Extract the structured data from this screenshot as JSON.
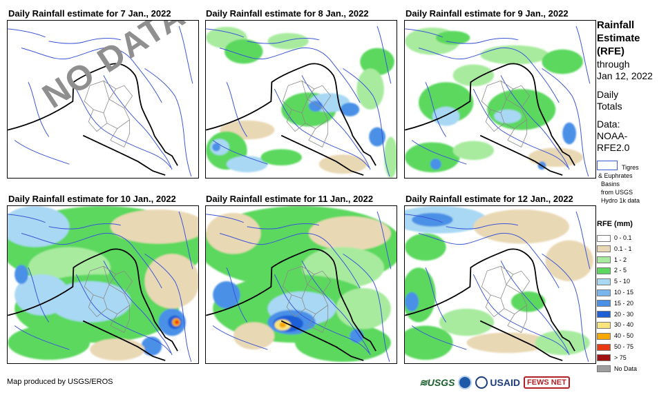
{
  "panels": [
    {
      "id": "p1",
      "title": "Daily Rainfall estimate for 7 Jan., 2022",
      "overlay": "NO DATA",
      "rain": []
    },
    {
      "id": "p2",
      "title": "Daily Rainfall estimate for 8 Jan., 2022",
      "rain": [
        {
          "c": "#a8eb9f",
          "cx": 30,
          "cy": 25,
          "rx": 30,
          "ry": 16
        },
        {
          "c": "#5cd85e",
          "cx": 55,
          "cy": 45,
          "rx": 28,
          "ry": 18
        },
        {
          "c": "#a8eb9f",
          "cx": 120,
          "cy": 30,
          "rx": 30,
          "ry": 12
        },
        {
          "c": "#5cd85e",
          "cx": 250,
          "cy": 60,
          "rx": 25,
          "ry": 20
        },
        {
          "c": "#a8eb9f",
          "cx": 240,
          "cy": 100,
          "rx": 20,
          "ry": 30
        },
        {
          "c": "#5cd85e",
          "cx": 150,
          "cy": 130,
          "rx": 40,
          "ry": 25
        },
        {
          "c": "#a8d8f3",
          "cx": 180,
          "cy": 120,
          "rx": 30,
          "ry": 14
        },
        {
          "c": "#4a90e6",
          "cx": 210,
          "cy": 130,
          "rx": 14,
          "ry": 10
        },
        {
          "c": "#4a90e6",
          "cx": 160,
          "cy": 125,
          "rx": 10,
          "ry": 8
        },
        {
          "c": "#e9d8b4",
          "cx": 60,
          "cy": 160,
          "rx": 40,
          "ry": 14
        },
        {
          "c": "#5cd85e",
          "cx": 30,
          "cy": 190,
          "rx": 30,
          "ry": 28
        },
        {
          "c": "#a8d8f3",
          "cx": 20,
          "cy": 185,
          "rx": 14,
          "ry": 12
        },
        {
          "c": "#4a90e6",
          "cx": 15,
          "cy": 185,
          "rx": 6,
          "ry": 6
        },
        {
          "c": "#a8d8f3",
          "cx": 60,
          "cy": 210,
          "rx": 30,
          "ry": 12
        },
        {
          "c": "#4a90e6",
          "cx": 250,
          "cy": 170,
          "rx": 12,
          "ry": 14
        },
        {
          "c": "#5cd85e",
          "cx": 110,
          "cy": 200,
          "rx": 30,
          "ry": 12
        },
        {
          "c": "#e9d8b4",
          "cx": 200,
          "cy": 210,
          "rx": 35,
          "ry": 14
        },
        {
          "c": "#a8eb9f",
          "cx": 270,
          "cy": 200,
          "rx": 10,
          "ry": 30
        }
      ]
    },
    {
      "id": "p3",
      "title": "Daily Rainfall estimate for 9 Jan., 2022",
      "rain": [
        {
          "c": "#a8eb9f",
          "cx": 40,
          "cy": 30,
          "rx": 40,
          "ry": 20
        },
        {
          "c": "#5cd85e",
          "cx": 70,
          "cy": 25,
          "rx": 25,
          "ry": 10
        },
        {
          "c": "#a8eb9f",
          "cx": 160,
          "cy": 50,
          "rx": 50,
          "ry": 14
        },
        {
          "c": "#5cd85e",
          "cx": 230,
          "cy": 60,
          "rx": 30,
          "ry": 18
        },
        {
          "c": "#a8eb9f",
          "cx": 100,
          "cy": 80,
          "rx": 30,
          "ry": 16
        },
        {
          "c": "#5cd85e",
          "cx": 60,
          "cy": 120,
          "rx": 40,
          "ry": 30
        },
        {
          "c": "#a8d8f3",
          "cx": 60,
          "cy": 140,
          "rx": 20,
          "ry": 14
        },
        {
          "c": "#5cd85e",
          "cx": 170,
          "cy": 130,
          "rx": 50,
          "ry": 30
        },
        {
          "c": "#a8d8f3",
          "cx": 150,
          "cy": 140,
          "rx": 20,
          "ry": 10
        },
        {
          "c": "#4a90e6",
          "cx": 240,
          "cy": 165,
          "rx": 10,
          "ry": 16
        },
        {
          "c": "#e9d8b4",
          "cx": 220,
          "cy": 200,
          "rx": 40,
          "ry": 14
        },
        {
          "c": "#5cd85e",
          "cx": 40,
          "cy": 200,
          "rx": 40,
          "ry": 22
        },
        {
          "c": "#4a90e6",
          "cx": 45,
          "cy": 210,
          "rx": 8,
          "ry": 8
        },
        {
          "c": "#a8eb9f",
          "cx": 100,
          "cy": 190,
          "rx": 30,
          "ry": 14
        },
        {
          "c": "#4a90e6",
          "cx": 200,
          "cy": 212,
          "rx": 6,
          "ry": 6
        }
      ]
    },
    {
      "id": "p4",
      "title": "Daily Rainfall estimate for 10 Jan., 2022",
      "rain": [
        {
          "c": "#5cd85e",
          "cx": 139,
          "cy": 60,
          "rx": 150,
          "ry": 60
        },
        {
          "c": "#a8d8f3",
          "cx": 40,
          "cy": 30,
          "rx": 50,
          "ry": 30
        },
        {
          "c": "#e9d8b4",
          "cx": 220,
          "cy": 30,
          "rx": 70,
          "ry": 25
        },
        {
          "c": "#a8eb9f",
          "cx": 90,
          "cy": 90,
          "rx": 60,
          "ry": 30
        },
        {
          "c": "#5cd85e",
          "cx": 130,
          "cy": 150,
          "rx": 120,
          "ry": 50
        },
        {
          "c": "#a8d8f3",
          "cx": 120,
          "cy": 140,
          "rx": 60,
          "ry": 30
        },
        {
          "c": "#a8d8f3",
          "cx": 50,
          "cy": 130,
          "rx": 40,
          "ry": 30
        },
        {
          "c": "#e9d8b4",
          "cx": 240,
          "cy": 110,
          "rx": 40,
          "ry": 40
        },
        {
          "c": "#4a90e6",
          "cx": 240,
          "cy": 170,
          "rx": 20,
          "ry": 20
        },
        {
          "c": "#1f5fd6",
          "cx": 244,
          "cy": 170,
          "rx": 10,
          "ry": 10
        },
        {
          "c": "#f6a700",
          "cx": 246,
          "cy": 170,
          "rx": 6,
          "ry": 6
        },
        {
          "c": "#e83b14",
          "cx": 247,
          "cy": 170,
          "rx": 3,
          "ry": 3
        },
        {
          "c": "#4a90e6",
          "cx": 210,
          "cy": 205,
          "rx": 15,
          "ry": 14
        },
        {
          "c": "#5cd85e",
          "cx": 60,
          "cy": 200,
          "rx": 60,
          "ry": 25
        },
        {
          "c": "#e9d8b4",
          "cx": 160,
          "cy": 210,
          "rx": 40,
          "ry": 16
        },
        {
          "c": "#4a90e6",
          "cx": 20,
          "cy": 100,
          "rx": 10,
          "ry": 14
        }
      ]
    },
    {
      "id": "p5",
      "title": "Daily Rainfall estimate for 11 Jan., 2022",
      "rain": [
        {
          "c": "#5cd85e",
          "cx": 139,
          "cy": 60,
          "rx": 150,
          "ry": 60
        },
        {
          "c": "#e9d8b4",
          "cx": 40,
          "cy": 40,
          "rx": 40,
          "ry": 30
        },
        {
          "c": "#e9d8b4",
          "cx": 210,
          "cy": 40,
          "rx": 60,
          "ry": 25
        },
        {
          "c": "#a8eb9f",
          "cx": 200,
          "cy": 90,
          "rx": 60,
          "ry": 30
        },
        {
          "c": "#5cd85e",
          "cx": 130,
          "cy": 150,
          "rx": 120,
          "ry": 50
        },
        {
          "c": "#4a90e6",
          "cx": 30,
          "cy": 130,
          "rx": 20,
          "ry": 20
        },
        {
          "c": "#a8d8f3",
          "cx": 140,
          "cy": 150,
          "rx": 50,
          "ry": 25
        },
        {
          "c": "#4a90e6",
          "cx": 125,
          "cy": 170,
          "rx": 35,
          "ry": 18
        },
        {
          "c": "#1f5fd6",
          "cx": 120,
          "cy": 172,
          "rx": 22,
          "ry": 12
        },
        {
          "c": "#f9e57e",
          "cx": 112,
          "cy": 174,
          "rx": 12,
          "ry": 8
        },
        {
          "c": "#f6a700",
          "cx": 112,
          "cy": 174,
          "rx": 5,
          "ry": 4
        },
        {
          "c": "#e9d8b4",
          "cx": 70,
          "cy": 190,
          "rx": 30,
          "ry": 20
        },
        {
          "c": "#5cd85e",
          "cx": 200,
          "cy": 200,
          "rx": 70,
          "ry": 28
        },
        {
          "c": "#4a90e6",
          "cx": 220,
          "cy": 190,
          "rx": 10,
          "ry": 10
        },
        {
          "c": "#a8eb9f",
          "cx": 230,
          "cy": 150,
          "rx": 40,
          "ry": 30
        }
      ]
    },
    {
      "id": "p6",
      "title": "Daily Rainfall estimate for 12 Jan., 2022",
      "rain": [
        {
          "c": "#a8d8f3",
          "cx": 50,
          "cy": 20,
          "rx": 70,
          "ry": 20
        },
        {
          "c": "#4a90e6",
          "cx": 40,
          "cy": 20,
          "rx": 30,
          "ry": 10
        },
        {
          "c": "#e9d8b4",
          "cx": 170,
          "cy": 30,
          "rx": 70,
          "ry": 25
        },
        {
          "c": "#5cd85e",
          "cx": 30,
          "cy": 60,
          "rx": 30,
          "ry": 20
        },
        {
          "c": "#e9d8b4",
          "cx": 240,
          "cy": 80,
          "rx": 35,
          "ry": 30
        },
        {
          "c": "#5cd85e",
          "cx": 20,
          "cy": 130,
          "rx": 25,
          "ry": 40
        },
        {
          "c": "#4a90e6",
          "cx": 10,
          "cy": 140,
          "rx": 10,
          "ry": 14
        },
        {
          "c": "#a8eb9f",
          "cx": 90,
          "cy": 170,
          "rx": 40,
          "ry": 20
        },
        {
          "c": "#5cd85e",
          "cx": 30,
          "cy": 200,
          "rx": 40,
          "ry": 25
        },
        {
          "c": "#e9d8b4",
          "cx": 150,
          "cy": 200,
          "rx": 60,
          "ry": 15
        },
        {
          "c": "#a8eb9f",
          "cx": 230,
          "cy": 200,
          "rx": 40,
          "ry": 18
        },
        {
          "c": "#5cd85e",
          "cx": 180,
          "cy": 140,
          "rx": 25,
          "ry": 15
        }
      ]
    }
  ],
  "sidebar": {
    "heading": [
      "Rainfall",
      "Estimate",
      "(RFE)"
    ],
    "through": [
      "through",
      "Jan 12, 2022"
    ],
    "daily": [
      "Daily",
      "Totals"
    ],
    "data_src": [
      "Data:",
      "NOAA-",
      "RFE2.0"
    ],
    "basin_note": [
      "Tigres",
      "& Euphrates",
      "Basins",
      "from USGS",
      "Hydro 1k data"
    ]
  },
  "legend": {
    "title": "RFE (mm)",
    "items": [
      {
        "label": "0 - 0.1",
        "color": "#ffffff"
      },
      {
        "label": "0.1 - 1",
        "color": "#e9d8b4"
      },
      {
        "label": "1 - 2",
        "color": "#a8eb9f"
      },
      {
        "label": "2 - 5",
        "color": "#5cd85e"
      },
      {
        "label": "5 - 10",
        "color": "#a8d8f3"
      },
      {
        "label": "10 - 15",
        "color": "#79b6f0"
      },
      {
        "label": "15 - 20",
        "color": "#4a90e6"
      },
      {
        "label": "20 - 30",
        "color": "#1f5fd6"
      },
      {
        "label": "30 - 40",
        "color": "#f9e57e"
      },
      {
        "label": "40 - 50",
        "color": "#f6a700"
      },
      {
        "label": "50 - 75",
        "color": "#e83b14"
      },
      {
        "label": "> 75",
        "color": "#a01010"
      },
      {
        "label": "No Data",
        "color": "#9e9e9e"
      }
    ]
  },
  "credit": "Map produced by USGS/EROS",
  "logos": {
    "usgs": "≋USGS",
    "usaid": "USAID",
    "fews": "FEWS NET"
  },
  "colors": {
    "river": "#3a55d8",
    "border": "#000000",
    "admin": "#8a8a8a"
  }
}
